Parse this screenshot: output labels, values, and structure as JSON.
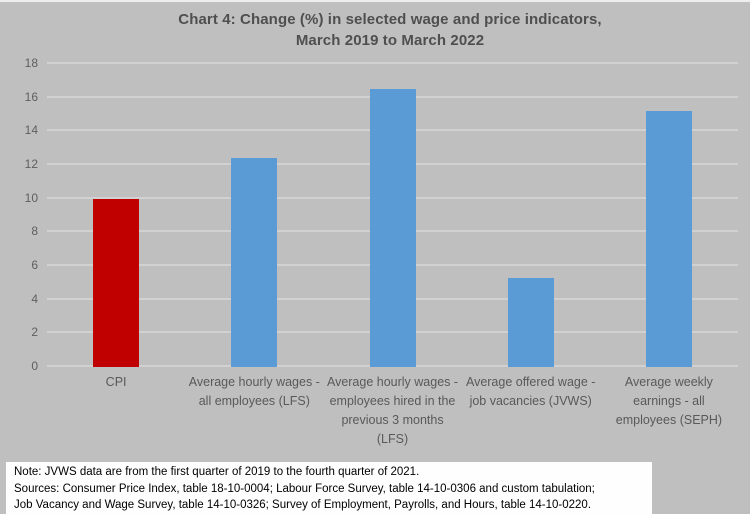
{
  "colors": {
    "canvas_background": "#bfbfbf",
    "gridline": "#d1d1d1",
    "cpi_bar_red": "#c00000",
    "wage_bar_blue": "#5b9bd5",
    "title_text": "#4f4f4f",
    "axis_text": "#5f5f5f",
    "notes_background": "#fefefe",
    "notes_text": "#000000"
  },
  "chart_data": {
    "type": "bar",
    "title": "Chart 4: Change (%) in selected wage and price indicators, March 2019 to March 2022",
    "title_lines": [
      "Chart 4: Change (%) in selected wage and price indicators,",
      "March 2019 to March 2022"
    ],
    "categories": [
      "CPI",
      "Average hourly wages - all employees (LFS)",
      "Average hourly wages - employees hired in the previous 3 months (LFS)",
      "Average offered wage - job vacancies (JVWS)",
      "Average weekly earnings - all employees (SEPH)"
    ],
    "values": [
      10.0,
      12.4,
      16.5,
      5.3,
      15.2
    ],
    "bar_colors": [
      "#c00000",
      "#5b9bd5",
      "#5b9bd5",
      "#5b9bd5",
      "#5b9bd5"
    ],
    "xlabel": "",
    "ylabel": "",
    "ylim": [
      0,
      18
    ],
    "yticks": [
      0,
      2,
      4,
      6,
      8,
      10,
      12,
      14,
      16,
      18
    ],
    "grid": true,
    "legend_position": "none"
  },
  "notes": {
    "lines": [
      "Note: JVWS data are from the first quarter of 2019 to the fourth quarter of 2021.",
      "Sources: Consumer Price Index, table 18-10-0004; Labour Force Survey, table 14-10-0306 and custom tabulation;",
      "Job Vacancy and Wage Survey, table 14-10-0326; Survey of Employment, Payrolls, and Hours, table 14-10-0220."
    ]
  }
}
